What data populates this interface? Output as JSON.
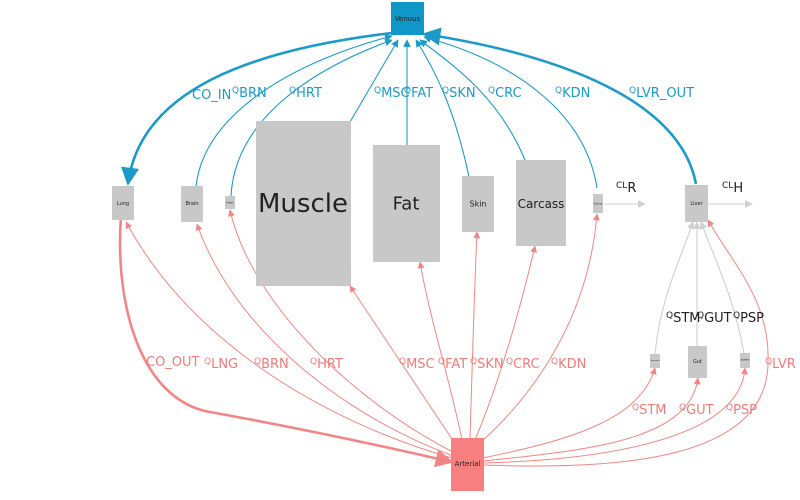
{
  "nodes": {
    "venous": "Venous",
    "arterial": "Arterial",
    "lung": "Lung",
    "brain": "Brain",
    "heart": "Heart",
    "muscle": "Muscle",
    "fat": "Fat",
    "skin": "Skin",
    "carcass": "Carcass",
    "kidney": "Kidney",
    "liver": "Liver",
    "stomach": "Stomach",
    "gut": "Gut",
    "spleen": "Spleen"
  },
  "venous_labels": {
    "co_in": "CO_IN",
    "brn": "BRN",
    "hrt": "HRT",
    "msc": "MSC",
    "fat": "FAT",
    "skn": "SKN",
    "crc": "CRC",
    "kdn": "KDN",
    "lvr_out": "LVR_OUT"
  },
  "arterial_labels": {
    "co_out": "CO_OUT",
    "lng": "LNG",
    "brn": "BRN",
    "hrt": "HRT",
    "msc": "MSC",
    "fat": "FAT",
    "skn": "SKN",
    "crc": "CRC",
    "kdn": "KDN",
    "lvr": "LVR",
    "stm": "STM",
    "gut": "GUT",
    "psp": "PSP"
  },
  "portal_labels": {
    "stm": "STM",
    "gut": "GUT",
    "psp": "PSP"
  },
  "clearance": {
    "prefix": "CL",
    "renal": "R",
    "hepatic": "H"
  },
  "flow_prefix": "Q",
  "colors": {
    "venous": "#0f97c8",
    "arterial": "#f77f7f",
    "organ": "#c8c8c8"
  }
}
